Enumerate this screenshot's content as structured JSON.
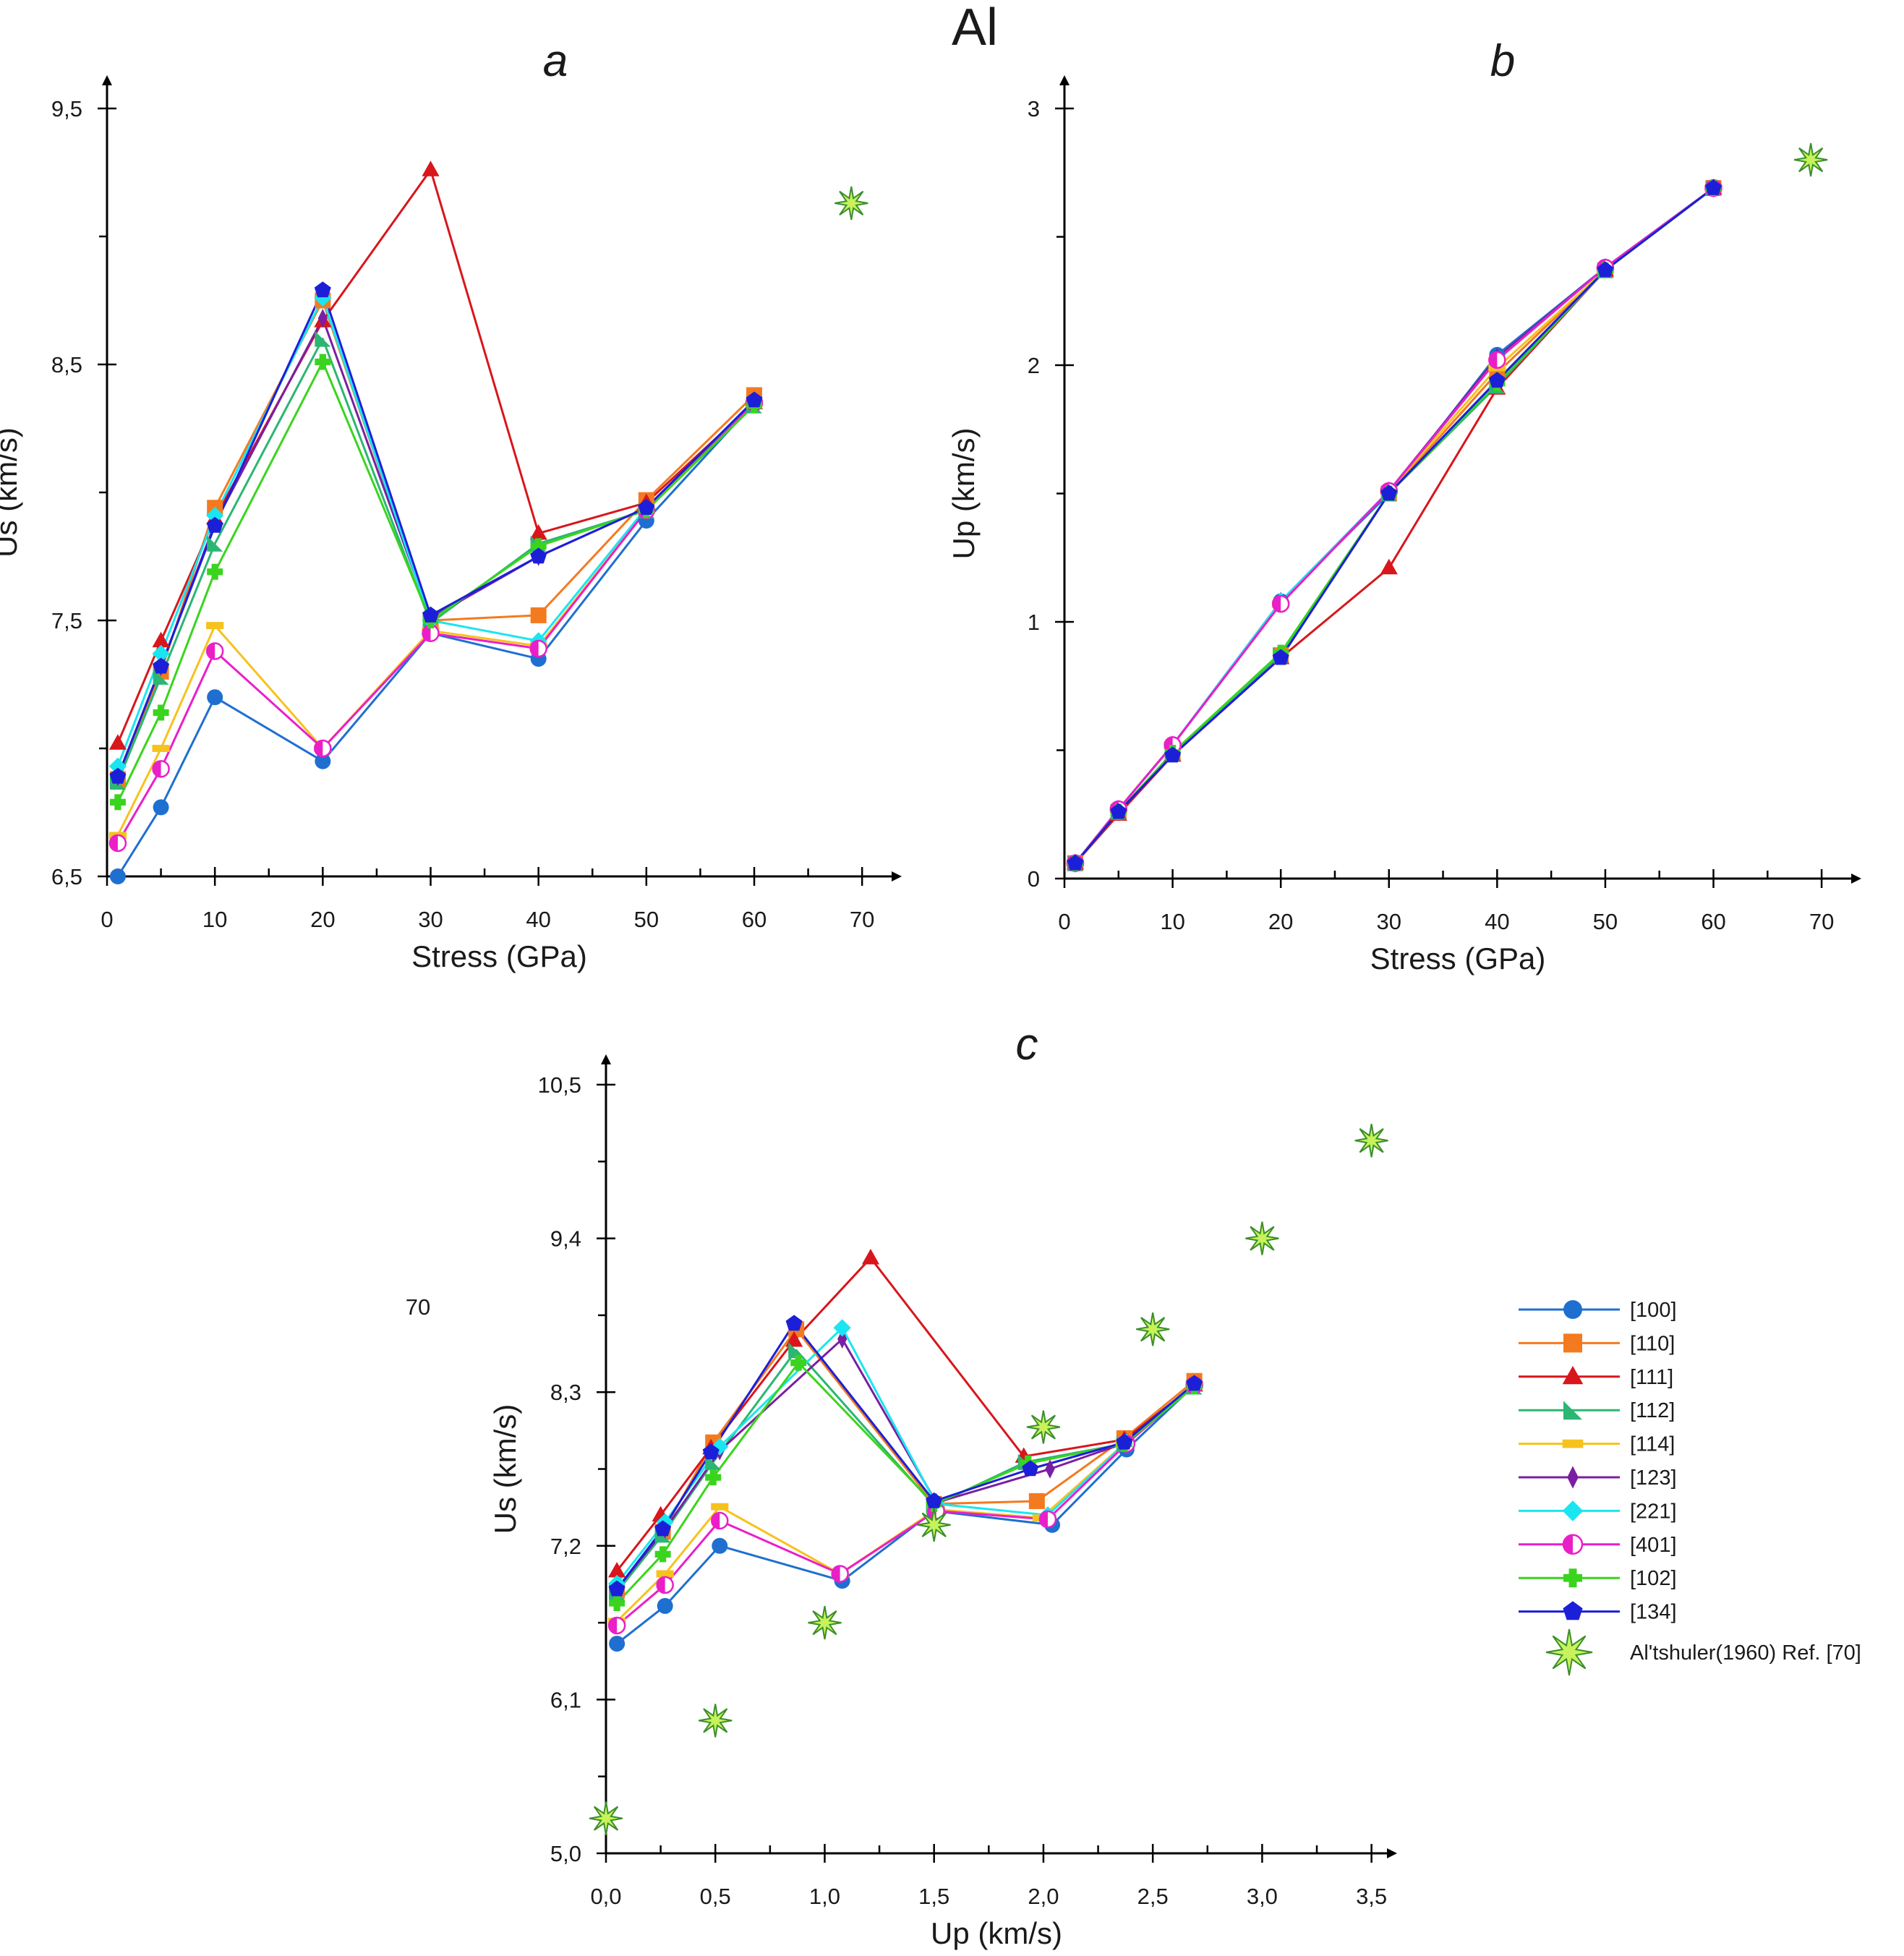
{
  "figure": {
    "title": "Al",
    "stray_label": "70"
  },
  "colors": {
    "[100]": "#1f6fd1",
    "[110]": "#f47a1f",
    "[111]": "#d8161c",
    "[112]": "#2bb673",
    "[114]": "#f6c21d",
    "[123]": "#7a1fa2",
    "[221]": "#19e6f0",
    "[401]": "#ea1fc8",
    "[102]": "#3ad41f",
    "[134]": "#1c1fd8",
    "star_fill": "#c7f25b",
    "star_stroke": "#3a8f2a"
  },
  "series_style": [
    {
      "name": "[100]",
      "marker": "circle"
    },
    {
      "name": "[110]",
      "marker": "square"
    },
    {
      "name": "[111]",
      "marker": "triangle"
    },
    {
      "name": "[112]",
      "marker": "wedge"
    },
    {
      "name": "[114]",
      "marker": "dash"
    },
    {
      "name": "[123]",
      "marker": "diamond-thin"
    },
    {
      "name": "[221]",
      "marker": "diamond"
    },
    {
      "name": "[401]",
      "marker": "halfcircle"
    },
    {
      "name": "[102]",
      "marker": "plus"
    },
    {
      "name": "[134]",
      "marker": "pentagon"
    }
  ],
  "legend": {
    "entries": [
      "[100]",
      "[110]",
      "[111]",
      "[112]",
      "[114]",
      "[123]",
      "[221]",
      "[401]",
      "[102]",
      "[134]"
    ],
    "reference_label": "Al'tshuler(1960) Ref. [70]"
  },
  "chart_data": [
    {
      "id": "a",
      "type": "line",
      "panel_label": "a",
      "xlabel": "Stress (GPa)",
      "ylabel": "Us (km/s)",
      "xlim": [
        0,
        72
      ],
      "ylim": [
        6.5,
        9.5
      ],
      "xticks": [
        0,
        10,
        20,
        30,
        40,
        50,
        60,
        70
      ],
      "xtick_labels": [
        "0",
        "10",
        "20",
        "30",
        "40",
        "50",
        "60",
        "70"
      ],
      "xminor": [
        5,
        15,
        25,
        35,
        45,
        55,
        65
      ],
      "yticks": [
        6.5,
        7.5,
        8.5,
        9.5
      ],
      "ytick_labels": [
        "6,5",
        "7,5",
        "8,5",
        "9,5"
      ],
      "yminor": [
        7.0,
        8.0,
        9.0
      ],
      "x": [
        1,
        5,
        10,
        20,
        30,
        40,
        50,
        60
      ],
      "series": [
        {
          "name": "[100]",
          "values": [
            6.5,
            6.77,
            7.2,
            6.95,
            7.45,
            7.35,
            7.89,
            8.35
          ]
        },
        {
          "name": "[110]",
          "values": [
            6.88,
            7.3,
            7.94,
            8.75,
            7.5,
            7.52,
            7.97,
            8.38
          ]
        },
        {
          "name": "[111]",
          "values": [
            7.02,
            7.42,
            7.9,
            8.67,
            9.26,
            7.84,
            7.96,
            8.35
          ]
        },
        {
          "name": "[112]",
          "values": [
            6.87,
            7.28,
            7.8,
            8.6,
            7.49,
            7.8,
            7.93,
            8.34
          ]
        },
        {
          "name": "[114]",
          "values": [
            6.66,
            7.0,
            7.48,
            7.0,
            7.46,
            7.4,
            7.93,
            8.35
          ]
        },
        {
          "name": "[123]",
          "values": [
            6.89,
            7.32,
            7.88,
            8.68,
            7.51,
            7.75,
            7.94,
            8.35
          ]
        },
        {
          "name": "[221]",
          "values": [
            6.93,
            7.37,
            7.91,
            8.76,
            7.5,
            7.42,
            7.94,
            8.35
          ]
        },
        {
          "name": "[401]",
          "values": [
            6.63,
            6.92,
            7.38,
            7.0,
            7.45,
            7.39,
            7.93,
            8.35
          ]
        },
        {
          "name": "[102]",
          "values": [
            6.79,
            7.14,
            7.69,
            8.51,
            7.5,
            7.79,
            7.93,
            8.34
          ]
        },
        {
          "name": "[134]",
          "values": [
            6.89,
            7.32,
            7.87,
            8.79,
            7.52,
            7.75,
            7.94,
            8.36
          ]
        }
      ],
      "reference": {
        "name": "Al'tshuler(1960) Ref. [70]",
        "x": [
          69
        ],
        "y": [
          9.13
        ]
      }
    },
    {
      "id": "b",
      "type": "line",
      "panel_label": "b",
      "xlabel": "Stress (GPa)",
      "ylabel": "Up (km/s)",
      "xlim": [
        0,
        72
      ],
      "ylim": [
        0,
        3
      ],
      "xticks": [
        0,
        10,
        20,
        30,
        40,
        50,
        60,
        70
      ],
      "xtick_labels": [
        "0",
        "10",
        "20",
        "30",
        "40",
        "50",
        "60",
        "70"
      ],
      "xminor": [
        5,
        15,
        25,
        35,
        45,
        55,
        65
      ],
      "yticks": [
        0,
        1,
        2,
        3
      ],
      "ytick_labels": [
        "0",
        "1",
        "2",
        "3"
      ],
      "yminor": [
        0.5,
        1.5,
        2.5
      ],
      "x": [
        1,
        5,
        10,
        20,
        30,
        40,
        50,
        60
      ],
      "series": [
        {
          "name": "[100]",
          "values": [
            0.06,
            0.27,
            0.52,
            1.08,
            1.5,
            2.04,
            2.38,
            2.69
          ]
        },
        {
          "name": "[110]",
          "values": [
            0.06,
            0.26,
            0.49,
            0.87,
            1.5,
            1.97,
            2.37,
            2.69
          ]
        },
        {
          "name": "[111]",
          "values": [
            0.06,
            0.25,
            0.48,
            0.86,
            1.21,
            1.91,
            2.37,
            2.69
          ]
        },
        {
          "name": "[112]",
          "values": [
            0.06,
            0.26,
            0.49,
            0.87,
            1.5,
            1.92,
            2.37,
            2.69
          ]
        },
        {
          "name": "[114]",
          "values": [
            0.06,
            0.27,
            0.52,
            1.07,
            1.51,
            1.99,
            2.37,
            2.69
          ]
        },
        {
          "name": "[123]",
          "values": [
            0.06,
            0.27,
            0.52,
            1.08,
            1.51,
            2.03,
            2.38,
            2.69
          ]
        },
        {
          "name": "[221]",
          "values": [
            0.06,
            0.27,
            0.52,
            1.08,
            1.51,
            2.02,
            2.38,
            2.69
          ]
        },
        {
          "name": "[401]",
          "values": [
            0.06,
            0.27,
            0.52,
            1.07,
            1.51,
            2.02,
            2.38,
            2.69
          ]
        },
        {
          "name": "[102]",
          "values": [
            0.06,
            0.26,
            0.49,
            0.88,
            1.5,
            1.93,
            2.37,
            2.69
          ]
        },
        {
          "name": "[134]",
          "values": [
            0.06,
            0.26,
            0.48,
            0.86,
            1.5,
            1.94,
            2.37,
            2.69
          ]
        }
      ],
      "reference": {
        "name": "Al'tshuler(1960) Ref. [70]",
        "x": [
          69
        ],
        "y": [
          2.8
        ]
      }
    },
    {
      "id": "c",
      "type": "line",
      "panel_label": "c",
      "xlabel": "Up (km/s)",
      "ylabel": "Us (km/s)",
      "xlim": [
        0,
        3.65
      ],
      "ylim": [
        5.0,
        10.5
      ],
      "xticks": [
        0,
        0.5,
        1.0,
        1.5,
        2.0,
        2.5,
        3.0,
        3.5
      ],
      "xtick_labels": [
        "0,0",
        "0,5",
        "1,0",
        "1,5",
        "2,0",
        "2,5",
        "3,0",
        "3,5"
      ],
      "xminor": [
        0.25,
        0.75,
        1.25,
        1.75,
        2.25,
        2.75,
        3.25
      ],
      "yticks": [
        5.0,
        6.1,
        7.2,
        8.3,
        9.4,
        10.5
      ],
      "ytick_labels": [
        "5,0",
        "6,1",
        "7,2",
        "8,3",
        "9,4",
        "10,5"
      ],
      "yminor": [
        5.55,
        6.65,
        7.75,
        8.85,
        9.95
      ],
      "series": [
        {
          "name": "[100]",
          "x": [
            0.05,
            0.27,
            0.52,
            1.08,
            1.5,
            2.04,
            2.38,
            2.69
          ],
          "values": [
            6.5,
            6.77,
            7.2,
            6.95,
            7.45,
            7.35,
            7.89,
            8.35
          ]
        },
        {
          "name": "[110]",
          "x": [
            0.05,
            0.26,
            0.49,
            0.87,
            1.5,
            1.97,
            2.37,
            2.69
          ],
          "values": [
            6.88,
            7.3,
            7.94,
            8.75,
            7.5,
            7.52,
            7.97,
            8.38
          ]
        },
        {
          "name": "[111]",
          "x": [
            0.05,
            0.25,
            0.48,
            0.86,
            1.21,
            1.91,
            2.37,
            2.69
          ],
          "values": [
            7.02,
            7.42,
            7.9,
            8.67,
            9.26,
            7.84,
            7.96,
            8.35
          ]
        },
        {
          "name": "[112]",
          "x": [
            0.05,
            0.26,
            0.49,
            0.87,
            1.5,
            1.92,
            2.37,
            2.69
          ],
          "values": [
            6.87,
            7.28,
            7.8,
            8.6,
            7.49,
            7.8,
            7.93,
            8.34
          ]
        },
        {
          "name": "[114]",
          "x": [
            0.05,
            0.27,
            0.52,
            1.07,
            1.51,
            1.99,
            2.37,
            2.69
          ],
          "values": [
            6.66,
            7.0,
            7.48,
            7.0,
            7.46,
            7.4,
            7.93,
            8.35
          ]
        },
        {
          "name": "[123]",
          "x": [
            0.05,
            0.27,
            0.52,
            1.08,
            1.51,
            2.03,
            2.38,
            2.69
          ],
          "values": [
            6.89,
            7.32,
            7.88,
            8.68,
            7.51,
            7.75,
            7.94,
            8.35
          ]
        },
        {
          "name": "[221]",
          "x": [
            0.05,
            0.27,
            0.52,
            1.08,
            1.51,
            2.02,
            2.38,
            2.69
          ],
          "values": [
            6.93,
            7.37,
            7.91,
            8.76,
            7.5,
            7.42,
            7.94,
            8.35
          ]
        },
        {
          "name": "[401]",
          "x": [
            0.05,
            0.27,
            0.52,
            1.07,
            1.51,
            2.02,
            2.38,
            2.69
          ],
          "values": [
            6.63,
            6.92,
            7.38,
            7.0,
            7.45,
            7.39,
            7.93,
            8.35
          ]
        },
        {
          "name": "[102]",
          "x": [
            0.05,
            0.26,
            0.49,
            0.88,
            1.5,
            1.93,
            2.37,
            2.69
          ],
          "values": [
            6.79,
            7.14,
            7.69,
            8.51,
            7.5,
            7.79,
            7.93,
            8.34
          ]
        },
        {
          "name": "[134]",
          "x": [
            0.05,
            0.26,
            0.48,
            0.86,
            1.5,
            1.94,
            2.37,
            2.69
          ],
          "values": [
            6.89,
            7.32,
            7.87,
            8.79,
            7.52,
            7.75,
            7.94,
            8.36
          ]
        }
      ],
      "reference": {
        "name": "Al'tshuler(1960) Ref. [70]",
        "x": [
          0.0,
          0.5,
          1.0,
          1.5,
          2.0,
          2.5,
          3.0,
          3.5
        ],
        "y": [
          5.25,
          5.95,
          6.65,
          7.35,
          8.05,
          8.75,
          9.4,
          10.1
        ]
      }
    }
  ]
}
